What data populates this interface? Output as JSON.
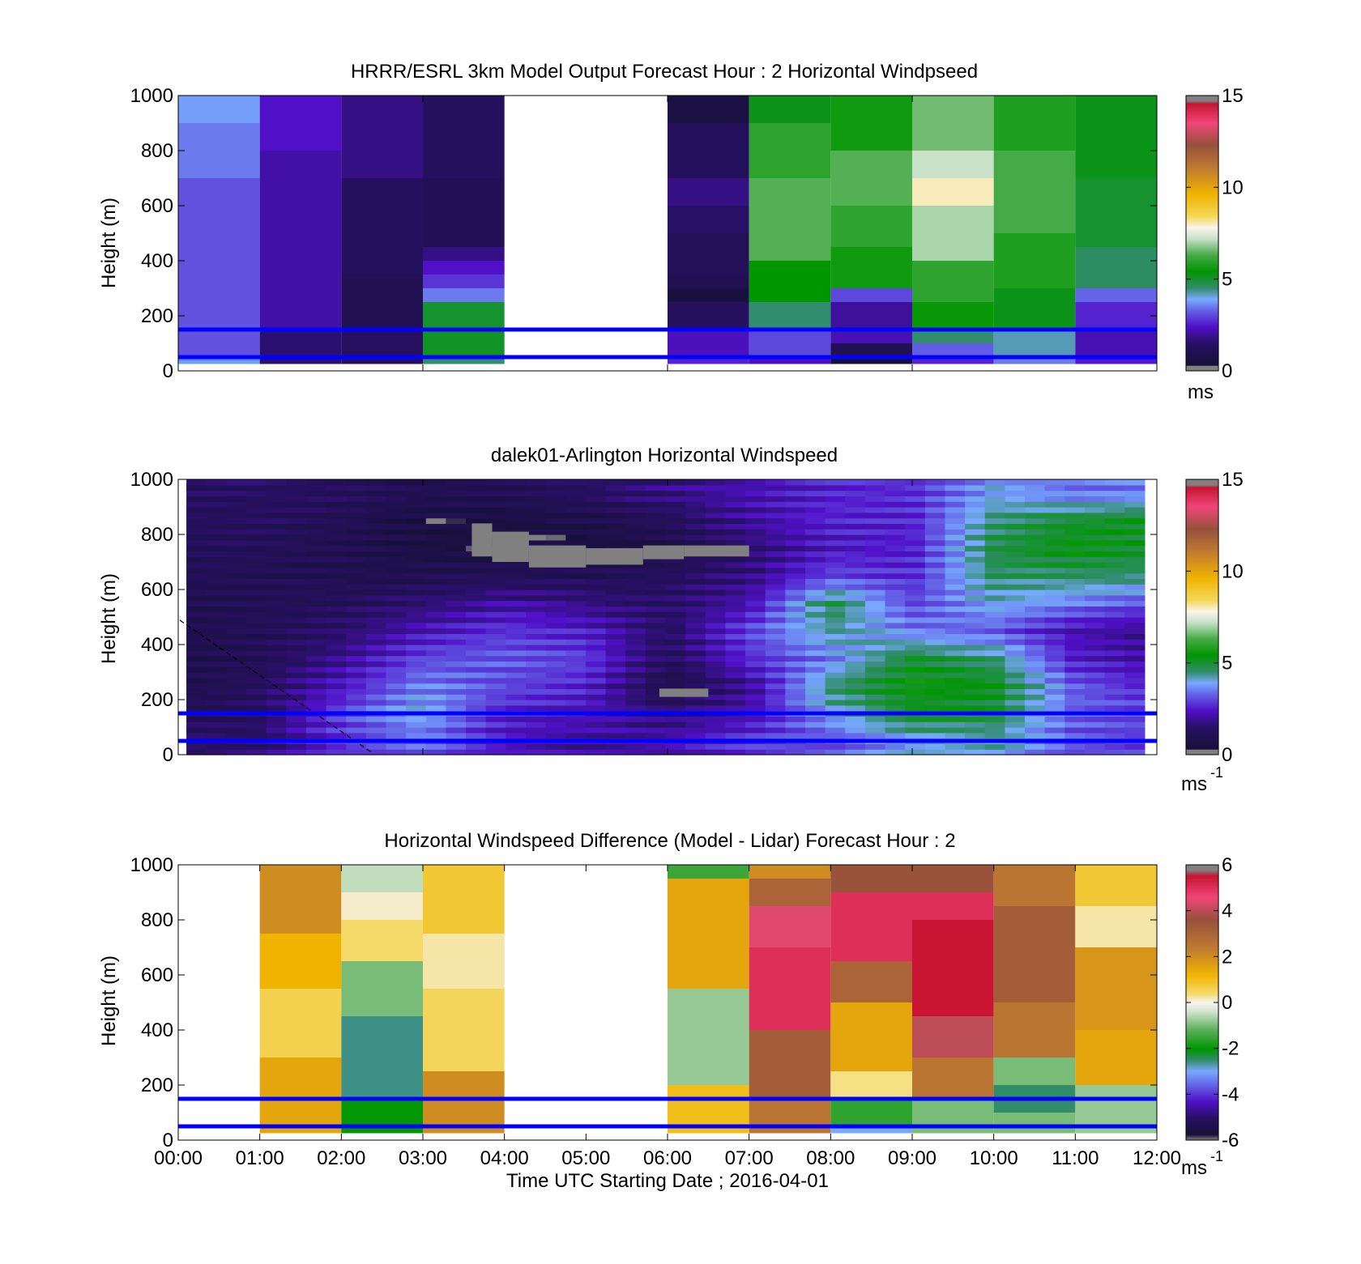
{
  "chart_data": [
    {
      "type": "heatmap",
      "title": "HRRR/ESRL 3km Model Output   Forecast Hour : 2 Horizontal Windpseed",
      "ylabel": "Height (m)",
      "xlabel": "",
      "ylim": [
        0,
        1000
      ],
      "yticks": [
        "0",
        "200",
        "400",
        "600",
        "800",
        "1000"
      ],
      "x_tick_positions_hours": [
        0,
        3,
        6,
        9,
        12
      ],
      "colorbar": {
        "min": 0,
        "max": 15,
        "ticks": [
          "0",
          "5",
          "10",
          "15"
        ],
        "unit": "ms"
      },
      "reference_lines_m": [
        150,
        50
      ],
      "reference_line_color": "#0000ff",
      "columns": [
        {
          "t0": 0,
          "t1": 1,
          "bands": [
            [
              25,
              35,
              4
            ],
            [
              35,
              50,
              3.6
            ],
            [
              50,
              700,
              3.1
            ],
            [
              700,
              900,
              3.5
            ],
            [
              900,
              1000,
              3.8
            ]
          ]
        },
        {
          "t0": 1,
          "t1": 2,
          "bands": [
            [
              25,
              150,
              1.6
            ],
            [
              150,
              800,
              2.1
            ],
            [
              800,
              1000,
              2.4
            ]
          ]
        },
        {
          "t0": 2,
          "t1": 3,
          "bands": [
            [
              25,
              150,
              1.4
            ],
            [
              150,
              350,
              1.0
            ],
            [
              350,
              700,
              1.3
            ],
            [
              700,
              1000,
              1.8
            ]
          ]
        },
        {
          "t0": 3,
          "t1": 4,
          "bands": [
            [
              25,
              50,
              4.5
            ],
            [
              50,
              150,
              5.1
            ],
            [
              150,
              250,
              5.0
            ],
            [
              250,
              300,
              3.5
            ],
            [
              300,
              350,
              2.8
            ],
            [
              350,
              400,
              2.4
            ],
            [
              400,
              450,
              1.8
            ],
            [
              450,
              700,
              1.1
            ],
            [
              700,
              1000,
              1.3
            ]
          ]
        },
        {
          "t0": 6,
          "t1": 7,
          "bands": [
            [
              25,
              50,
              2.6
            ],
            [
              50,
              150,
              2.3
            ],
            [
              150,
              250,
              1.3
            ],
            [
              250,
              300,
              0.5
            ],
            [
              300,
              350,
              1.0
            ],
            [
              350,
              500,
              1.2
            ],
            [
              500,
              600,
              1.5
            ],
            [
              600,
              700,
              1.8
            ],
            [
              700,
              900,
              1.3
            ],
            [
              900,
              1000,
              0.6
            ]
          ]
        },
        {
          "t0": 7,
          "t1": 8,
          "bands": [
            [
              25,
              50,
              2.3
            ],
            [
              50,
              150,
              3.0
            ],
            [
              150,
              250,
              4.5
            ],
            [
              250,
              400,
              5.4
            ],
            [
              400,
              700,
              6.4
            ],
            [
              700,
              900,
              6.0
            ],
            [
              900,
              1000,
              5.2
            ]
          ]
        },
        {
          "t0": 8,
          "t1": 9,
          "bands": [
            [
              25,
              50,
              0.4
            ],
            [
              50,
              100,
              1.0
            ],
            [
              100,
              150,
              2.2
            ],
            [
              150,
              250,
              2.0
            ],
            [
              250,
              300,
              3.0
            ],
            [
              300,
              450,
              5.6
            ],
            [
              450,
              600,
              6.0
            ],
            [
              600,
              800,
              6.4
            ],
            [
              800,
              1000,
              5.6
            ]
          ]
        },
        {
          "t0": 9,
          "t1": 10,
          "bands": [
            [
              25,
              50,
              2.6
            ],
            [
              50,
              100,
              3.2
            ],
            [
              100,
              150,
              4.5
            ],
            [
              150,
              250,
              5.5
            ],
            [
              250,
              400,
              6.0
            ],
            [
              400,
              600,
              7.0
            ],
            [
              600,
              700,
              8.0
            ],
            [
              700,
              800,
              7.2
            ],
            [
              800,
              1000,
              6.6
            ]
          ]
        },
        {
          "t0": 10,
          "t1": 11,
          "bands": [
            [
              25,
              50,
              3.5
            ],
            [
              50,
              150,
              4.2
            ],
            [
              150,
              300,
              5.2
            ],
            [
              300,
              500,
              5.8
            ],
            [
              500,
              800,
              6.3
            ],
            [
              800,
              1000,
              5.8
            ]
          ]
        },
        {
          "t0": 11,
          "t1": 12,
          "bands": [
            [
              25,
              50,
              2.5
            ],
            [
              50,
              150,
              2.2
            ],
            [
              150,
              250,
              2.6
            ],
            [
              250,
              300,
              3.3
            ],
            [
              300,
              450,
              4.6
            ],
            [
              450,
              700,
              5.0
            ],
            [
              700,
              1000,
              5.2
            ]
          ]
        }
      ]
    },
    {
      "type": "heatmap",
      "title": "dalek01-Arlington  Horizontal Windspeed",
      "ylabel": "Height (m)",
      "xlabel": "",
      "ylim": [
        0,
        1000
      ],
      "yticks": [
        "0",
        "200",
        "400",
        "600",
        "800",
        "1000"
      ],
      "x_tick_positions_hours": [
        0,
        3,
        6,
        9,
        12
      ],
      "colorbar": {
        "min": 0,
        "max": 15,
        "ticks": [
          "0",
          "5",
          "10",
          "15"
        ],
        "unit": "ms",
        "unit_sup": "-1"
      },
      "reference_lines_m": [
        150,
        50
      ],
      "reference_line_color": "#0000ff",
      "time_range_hours": [
        0.1,
        11.85
      ],
      "profile_timeseries": [
        {
          "t": 0,
          "v": [
            1.4,
            1.1,
            0.9,
            0.8,
            0.9,
            1.0,
            1.1,
            1.2,
            1.3,
            1.3
          ]
        },
        {
          "t": 1,
          "v": [
            1.6,
            1.4,
            1.3,
            1.2,
            1.1,
            1.1,
            1.1,
            1.2,
            1.3,
            1.4
          ]
        },
        {
          "t": 2,
          "v": [
            2.8,
            2.9,
            2.4,
            1.9,
            1.5,
            1.2,
            1.0,
            1.0,
            1.1,
            1.3
          ]
        },
        {
          "t": 3,
          "v": [
            3.3,
            4.0,
            3.6,
            3.0,
            2.3,
            1.6,
            1.0,
            0.6,
            0.6,
            1.0
          ]
        },
        {
          "t": 4,
          "v": [
            2.3,
            2.6,
            3.0,
            3.2,
            2.8,
            2.1,
            1.2,
            0.5,
            0.6,
            1.1
          ]
        },
        {
          "t": 5,
          "v": [
            2.0,
            2.3,
            2.6,
            2.9,
            2.5,
            1.8,
            1.1,
            0.5,
            0.8,
            1.4
          ]
        },
        {
          "t": 6,
          "v": [
            2.2,
            1.5,
            0.9,
            1.2,
            1.4,
            1.4,
            1.3,
            0.8,
            1.2,
            1.8
          ]
        },
        {
          "t": 7,
          "v": [
            2.8,
            2.2,
            1.9,
            2.7,
            3.0,
            2.2,
            1.7,
            1.6,
            2.0,
            2.2
          ]
        },
        {
          "t": 8,
          "v": [
            3.0,
            4.0,
            4.5,
            3.5,
            4.3,
            4.8,
            3.0,
            2.4,
            2.6,
            2.6
          ]
        },
        {
          "t": 9,
          "v": [
            4.0,
            5.0,
            5.4,
            5.0,
            3.5,
            3.0,
            2.7,
            2.5,
            2.6,
            2.7
          ]
        },
        {
          "t": 10,
          "v": [
            4.2,
            4.8,
            5.2,
            4.5,
            3.2,
            4.0,
            4.6,
            4.8,
            4.5,
            3.9
          ]
        },
        {
          "t": 11,
          "v": [
            3.0,
            3.3,
            3.2,
            2.5,
            2.2,
            3.5,
            4.6,
            5.3,
            5.0,
            3.4
          ]
        },
        {
          "t": 12,
          "v": [
            2.8,
            3.0,
            2.5,
            2.0,
            1.8,
            3.0,
            4.5,
            5.0,
            5.2,
            3.5
          ]
        }
      ],
      "missing_data_m": [
        {
          "t0": 3.6,
          "t1": 3.85,
          "h0": 720,
          "h1": 840
        },
        {
          "t0": 3.85,
          "t1": 4.3,
          "h0": 700,
          "h1": 810
        },
        {
          "t0": 4.3,
          "t1": 5.0,
          "h0": 680,
          "h1": 760
        },
        {
          "t0": 5.0,
          "t1": 5.7,
          "h0": 690,
          "h1": 750
        },
        {
          "t0": 5.7,
          "t1": 6.2,
          "h0": 710,
          "h1": 760
        },
        {
          "t0": 6.2,
          "t1": 7.0,
          "h0": 720,
          "h1": 760
        },
        {
          "t0": 5.9,
          "t1": 6.5,
          "h0": 210,
          "h1": 240
        }
      ]
    },
    {
      "type": "heatmap",
      "title": "Horizontal Windspeed Difference (Model - Lidar) Forecast Hour : 2",
      "ylabel": "Height (m)",
      "xlabel": "Time UTC  Starting Date ; 2016-04-01",
      "ylim": [
        0,
        1000
      ],
      "yticks": [
        "0",
        "200",
        "400",
        "600",
        "800",
        "1000"
      ],
      "xticks": [
        "00:00",
        "01:00",
        "02:00",
        "03:00",
        "04:00",
        "05:00",
        "06:00",
        "07:00",
        "08:00",
        "09:00",
        "10:00",
        "11:00",
        "12:00"
      ],
      "colorbar": {
        "min": -6,
        "max": 6,
        "ticks": [
          "-6",
          "-4",
          "-2",
          "0",
          "2",
          "4",
          "6"
        ],
        "unit": "ms",
        "unit_sup": "-1"
      },
      "reference_lines_m": [
        150,
        50
      ],
      "reference_line_color": "#0000ff",
      "columns": [
        {
          "t0": 1,
          "t1": 2,
          "bands": [
            [
              25,
              300,
              1.5
            ],
            [
              300,
              550,
              0.6
            ],
            [
              550,
              750,
              1.2
            ],
            [
              750,
              1000,
              2.0
            ]
          ]
        },
        {
          "t0": 2,
          "t1": 3,
          "bands": [
            [
              25,
              150,
              -2.0
            ],
            [
              150,
              450,
              -2.6
            ],
            [
              450,
              650,
              -1.0
            ],
            [
              650,
              800,
              0.4
            ],
            [
              800,
              900,
              0.1
            ],
            [
              900,
              1000,
              -0.5
            ]
          ]
        },
        {
          "t0": 3,
          "t1": 4,
          "bands": [
            [
              25,
              250,
              2.0
            ],
            [
              250,
              550,
              0.5
            ],
            [
              550,
              750,
              0.2
            ],
            [
              750,
              1000,
              0.8
            ]
          ]
        },
        {
          "t0": 6,
          "t1": 7,
          "bands": [
            [
              25,
              200,
              1.0
            ],
            [
              200,
              550,
              -0.8
            ],
            [
              550,
              950,
              1.5
            ],
            [
              950,
              1000,
              -1.5
            ]
          ]
        },
        {
          "t0": 7,
          "t1": 8,
          "bands": [
            [
              25,
              150,
              2.5
            ],
            [
              150,
              400,
              3.2
            ],
            [
              400,
              700,
              5.0
            ],
            [
              700,
              850,
              4.4
            ],
            [
              850,
              950,
              3.0
            ],
            [
              950,
              1000,
              2.0
            ]
          ]
        },
        {
          "t0": 8,
          "t1": 9,
          "bands": [
            [
              25,
              50,
              -3.0
            ],
            [
              50,
              150,
              -1.6
            ],
            [
              150,
              250,
              0.3
            ],
            [
              250,
              500,
              1.5
            ],
            [
              500,
              650,
              3.0
            ],
            [
              650,
              900,
              5.0
            ],
            [
              900,
              1000,
              3.5
            ]
          ]
        },
        {
          "t0": 9,
          "t1": 10,
          "bands": [
            [
              25,
              150,
              -1.0
            ],
            [
              150,
              300,
              2.5
            ],
            [
              300,
              450,
              4.0
            ],
            [
              450,
              800,
              5.5
            ],
            [
              800,
              900,
              5.0
            ],
            [
              900,
              1000,
              3.5
            ]
          ]
        },
        {
          "t0": 10,
          "t1": 11,
          "bands": [
            [
              25,
              100,
              -1.0
            ],
            [
              100,
              200,
              -2.5
            ],
            [
              200,
              300,
              -1.0
            ],
            [
              300,
              500,
              2.5
            ],
            [
              500,
              850,
              3.2
            ],
            [
              850,
              1000,
              2.5
            ]
          ]
        },
        {
          "t0": 11,
          "t1": 12,
          "bands": [
            [
              25,
              200,
              -0.8
            ],
            [
              200,
              400,
              1.5
            ],
            [
              400,
              700,
              1.8
            ],
            [
              700,
              850,
              0.2
            ],
            [
              850,
              1000,
              0.8
            ]
          ]
        }
      ]
    }
  ]
}
